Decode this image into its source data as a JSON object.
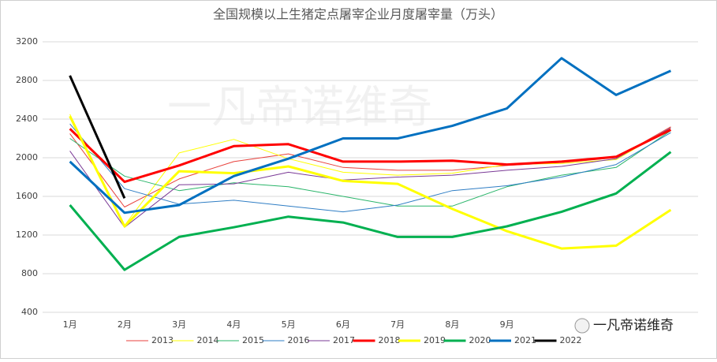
{
  "chart_data": {
    "type": "line",
    "title": "全国规模以上生猪定点屠宰企业月度屠宰量（万头）",
    "categories": [
      "1月",
      "2月",
      "3月",
      "4月",
      "5月",
      "6月",
      "7月",
      "8月",
      "9月",
      null,
      null,
      null
    ],
    "ylim": [
      400,
      3200
    ],
    "yticks": [
      400,
      800,
      1200,
      1600,
      2000,
      2400,
      2800,
      3200
    ],
    "grid": true,
    "watermark": "一凡帝诺维奇",
    "series": [
      {
        "name": "2013",
        "color": "#e8413c",
        "line_width": 1,
        "values": [
          2250,
          1490,
          1780,
          1960,
          2040,
          1900,
          1870,
          1870,
          1920,
          1950,
          2000,
          2320
        ]
      },
      {
        "name": "2014",
        "color": "#ffff00",
        "line_width": 1,
        "values": [
          2450,
          1300,
          2050,
          2190,
          1990,
          1850,
          1820,
          1840,
          1930,
          1940,
          1980,
          2310
        ]
      },
      {
        "name": "2015",
        "color": "#2ab56a",
        "line_width": 1,
        "values": [
          2200,
          1810,
          1660,
          1740,
          1700,
          1600,
          1500,
          1500,
          1700,
          1820,
          1900,
          2280
        ]
      },
      {
        "name": "2016",
        "color": "#2e7dc4",
        "line_width": 1,
        "values": [
          2350,
          1680,
          1520,
          1560,
          1500,
          1440,
          1510,
          1660,
          1710,
          1800,
          1930,
          2260
        ]
      },
      {
        "name": "2017",
        "color": "#7a3a96",
        "line_width": 1,
        "values": [
          2070,
          1280,
          1720,
          1730,
          1850,
          1770,
          1800,
          1820,
          1870,
          1910,
          1990,
          2310
        ]
      },
      {
        "name": "2018",
        "color": "#ff0000",
        "line_width": 3,
        "values": [
          2300,
          1750,
          1920,
          2120,
          2140,
          1960,
          1960,
          1970,
          1930,
          1960,
          2010,
          2290
        ]
      },
      {
        "name": "2019",
        "color": "#ffff00",
        "line_width": 3,
        "values": [
          2430,
          1290,
          1860,
          1840,
          1910,
          1760,
          1730,
          1470,
          1240,
          1060,
          1090,
          1460
        ]
      },
      {
        "name": "2020",
        "color": "#00b050",
        "line_width": 3,
        "values": [
          1510,
          840,
          1180,
          1280,
          1390,
          1330,
          1180,
          1180,
          1290,
          1440,
          1630,
          2060
        ]
      },
      {
        "name": "2021",
        "color": "#0070c0",
        "line_width": 3,
        "values": [
          1960,
          1430,
          1510,
          1810,
          1990,
          2200,
          2200,
          2330,
          2510,
          3030,
          2650,
          2900
        ]
      },
      {
        "name": "2022",
        "color": "#000000",
        "line_width": 3,
        "values": [
          2850,
          1580,
          null,
          null,
          null,
          null,
          null,
          null,
          null,
          null,
          null,
          null
        ]
      }
    ]
  }
}
